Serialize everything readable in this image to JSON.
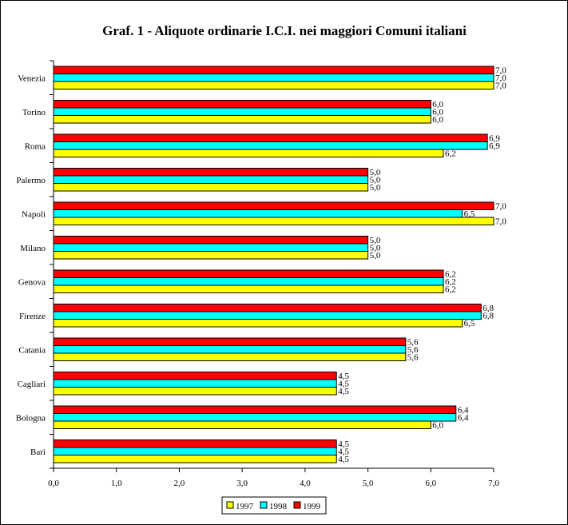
{
  "chart_data": {
    "type": "bar",
    "orientation": "horizontal",
    "title": "Graf. 1 - Aliquote ordinarie I.C.I. nei maggiori Comuni italiani",
    "categories": [
      "Venezia",
      "Torino",
      "Roma",
      "Palermo",
      "Napoli",
      "Milano",
      "Genova",
      "Firenze",
      "Catania",
      "Cagliari",
      "Bologna",
      "Bari"
    ],
    "series": [
      {
        "name": "1999",
        "color": "#ff0000",
        "values": [
          7.0,
          6.0,
          6.9,
          5.0,
          7.0,
          5.0,
          6.2,
          6.8,
          5.6,
          4.5,
          6.4,
          4.5
        ]
      },
      {
        "name": "1998",
        "color": "#00ffff",
        "values": [
          7.0,
          6.0,
          6.9,
          5.0,
          6.5,
          5.0,
          6.2,
          6.8,
          5.6,
          4.5,
          6.4,
          4.5
        ]
      },
      {
        "name": "1997",
        "color": "#ffff00",
        "values": [
          7.0,
          6.0,
          6.2,
          5.0,
          7.0,
          5.0,
          6.2,
          6.5,
          5.6,
          4.5,
          6.0,
          4.5
        ]
      }
    ],
    "xlim": [
      0,
      7
    ],
    "xticks": [
      "0,0",
      "1,0",
      "2,0",
      "3,0",
      "4,0",
      "5,0",
      "6,0",
      "7,0"
    ],
    "legend_order": [
      "1997",
      "1998",
      "1999"
    ],
    "legend_placement": "bottom",
    "grid": false,
    "data_labels": true,
    "decimal_separator": ","
  }
}
